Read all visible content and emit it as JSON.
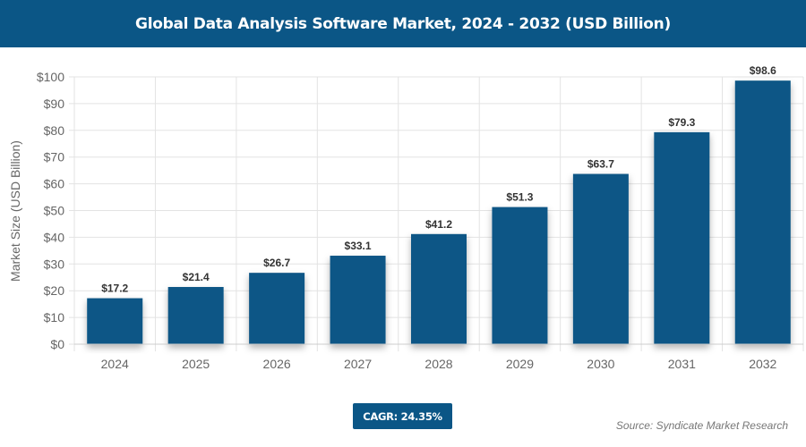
{
  "header": {
    "title": "Global Data Analysis Software Market, 2024 - 2032 (USD Billion)"
  },
  "chart_data": {
    "type": "bar",
    "title": "Global Data Analysis Software Market, 2024 - 2032 (USD Billion)",
    "categories": [
      "2024",
      "2025",
      "2026",
      "2027",
      "2028",
      "2029",
      "2030",
      "2031",
      "2032"
    ],
    "values": [
      17.2,
      21.4,
      26.7,
      33.1,
      41.2,
      51.3,
      63.7,
      79.3,
      98.6
    ],
    "data_labels": [
      "$17.2",
      "$21.4",
      "$26.7",
      "$33.1",
      "$41.2",
      "$51.3",
      "$63.7",
      "$79.3",
      "$98.6"
    ],
    "xlabel": "",
    "ylabel": "Market Size (USD Billion)",
    "ylim": [
      0,
      100
    ],
    "yticks": [
      0,
      10,
      20,
      30,
      40,
      50,
      60,
      70,
      80,
      90,
      100
    ],
    "ytick_labels": [
      "$0",
      "$10",
      "$20",
      "$30",
      "$40",
      "$50",
      "$60",
      "$70",
      "$80",
      "$90",
      "$100"
    ],
    "grid": true,
    "bar_color": "#0b5686"
  },
  "footer": {
    "cagr": "CAGR: 24.35%",
    "source": "Source: Syndicate Market Research"
  }
}
